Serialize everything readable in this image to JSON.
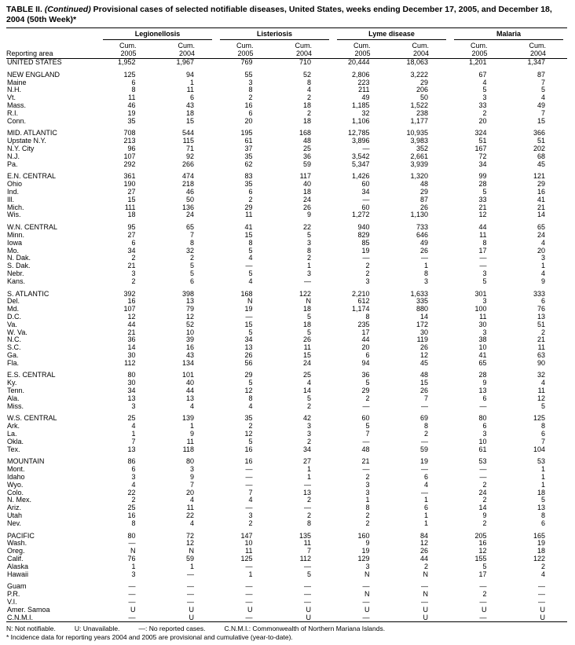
{
  "title": {
    "prefix": "TABLE II.",
    "continued": "(Continued)",
    "rest": "Provisional cases of selected notifiable diseases, United States, weeks ending December 17, 2005, and December 18, 2004 (50th Week)*"
  },
  "table": {
    "row_header": "Reporting area",
    "column_groups": [
      "Legionellosis",
      "Listeriosis",
      "Lyme disease",
      "Malaria"
    ],
    "sub_label": "Cum.",
    "years": [
      "2005",
      "2004"
    ],
    "sections": [
      {
        "rows": [
          {
            "area": "UNITED STATES",
            "values": [
              "1,952",
              "1,967",
              "769",
              "710",
              "20,444",
              "18,063",
              "1,201",
              "1,347"
            ]
          }
        ]
      },
      {
        "rows": [
          {
            "area": "NEW ENGLAND",
            "values": [
              "125",
              "94",
              "55",
              "52",
              "2,806",
              "3,222",
              "67",
              "87"
            ]
          },
          {
            "area": "Maine",
            "values": [
              "6",
              "1",
              "3",
              "8",
              "223",
              "29",
              "4",
              "7"
            ]
          },
          {
            "area": "N.H.",
            "values": [
              "8",
              "11",
              "8",
              "4",
              "211",
              "206",
              "5",
              "5"
            ]
          },
          {
            "area": "Vt.",
            "values": [
              "11",
              "6",
              "2",
              "2",
              "49",
              "50",
              "3",
              "4"
            ]
          },
          {
            "area": "Mass.",
            "values": [
              "46",
              "43",
              "16",
              "18",
              "1,185",
              "1,522",
              "33",
              "49"
            ]
          },
          {
            "area": "R.I.",
            "values": [
              "19",
              "18",
              "6",
              "2",
              "32",
              "238",
              "2",
              "7"
            ]
          },
          {
            "area": "Conn.",
            "values": [
              "35",
              "15",
              "20",
              "18",
              "1,106",
              "1,177",
              "20",
              "15"
            ]
          }
        ]
      },
      {
        "rows": [
          {
            "area": "MID. ATLANTIC",
            "values": [
              "708",
              "544",
              "195",
              "168",
              "12,785",
              "10,935",
              "324",
              "366"
            ]
          },
          {
            "area": "Upstate N.Y.",
            "values": [
              "213",
              "115",
              "61",
              "48",
              "3,896",
              "3,983",
              "51",
              "51"
            ]
          },
          {
            "area": "N.Y. City",
            "values": [
              "96",
              "71",
              "37",
              "25",
              "—",
              "352",
              "167",
              "202"
            ]
          },
          {
            "area": "N.J.",
            "values": [
              "107",
              "92",
              "35",
              "36",
              "3,542",
              "2,661",
              "72",
              "68"
            ]
          },
          {
            "area": "Pa.",
            "values": [
              "292",
              "266",
              "62",
              "59",
              "5,347",
              "3,939",
              "34",
              "45"
            ]
          }
        ]
      },
      {
        "rows": [
          {
            "area": "E.N. CENTRAL",
            "values": [
              "361",
              "474",
              "83",
              "117",
              "1,426",
              "1,320",
              "99",
              "121"
            ]
          },
          {
            "area": "Ohio",
            "values": [
              "190",
              "218",
              "35",
              "40",
              "60",
              "48",
              "28",
              "29"
            ]
          },
          {
            "area": "Ind.",
            "values": [
              "27",
              "46",
              "6",
              "18",
              "34",
              "29",
              "5",
              "16"
            ]
          },
          {
            "area": "Ill.",
            "values": [
              "15",
              "50",
              "2",
              "24",
              "—",
              "87",
              "33",
              "41"
            ]
          },
          {
            "area": "Mich.",
            "values": [
              "111",
              "136",
              "29",
              "26",
              "60",
              "26",
              "21",
              "21"
            ]
          },
          {
            "area": "Wis.",
            "values": [
              "18",
              "24",
              "11",
              "9",
              "1,272",
              "1,130",
              "12",
              "14"
            ]
          }
        ]
      },
      {
        "rows": [
          {
            "area": "W.N. CENTRAL",
            "values": [
              "95",
              "65",
              "41",
              "22",
              "940",
              "733",
              "44",
              "65"
            ]
          },
          {
            "area": "Minn.",
            "values": [
              "27",
              "7",
              "15",
              "5",
              "829",
              "646",
              "11",
              "24"
            ]
          },
          {
            "area": "Iowa",
            "values": [
              "6",
              "8",
              "8",
              "3",
              "85",
              "49",
              "8",
              "4"
            ]
          },
          {
            "area": "Mo.",
            "values": [
              "34",
              "32",
              "5",
              "8",
              "19",
              "26",
              "17",
              "20"
            ]
          },
          {
            "area": "N. Dak.",
            "values": [
              "2",
              "2",
              "4",
              "2",
              "—",
              "—",
              "—",
              "3"
            ]
          },
          {
            "area": "S. Dak.",
            "values": [
              "21",
              "5",
              "—",
              "1",
              "2",
              "1",
              "—",
              "1"
            ]
          },
          {
            "area": "Nebr.",
            "values": [
              "3",
              "5",
              "5",
              "3",
              "2",
              "8",
              "3",
              "4"
            ]
          },
          {
            "area": "Kans.",
            "values": [
              "2",
              "6",
              "4",
              "—",
              "3",
              "3",
              "5",
              "9"
            ]
          }
        ]
      },
      {
        "rows": [
          {
            "area": "S. ATLANTIC",
            "values": [
              "392",
              "398",
              "168",
              "122",
              "2,210",
              "1,633",
              "301",
              "333"
            ]
          },
          {
            "area": "Del.",
            "values": [
              "16",
              "13",
              "N",
              "N",
              "612",
              "335",
              "3",
              "6"
            ]
          },
          {
            "area": "Md.",
            "values": [
              "107",
              "79",
              "19",
              "18",
              "1,174",
              "880",
              "100",
              "76"
            ]
          },
          {
            "area": "D.C.",
            "values": [
              "12",
              "12",
              "—",
              "5",
              "8",
              "14",
              "11",
              "13"
            ]
          },
          {
            "area": "Va.",
            "values": [
              "44",
              "52",
              "15",
              "18",
              "235",
              "172",
              "30",
              "51"
            ]
          },
          {
            "area": "W. Va.",
            "values": [
              "21",
              "10",
              "5",
              "5",
              "17",
              "30",
              "3",
              "2"
            ]
          },
          {
            "area": "N.C.",
            "values": [
              "36",
              "39",
              "34",
              "26",
              "44",
              "119",
              "38",
              "21"
            ]
          },
          {
            "area": "S.C.",
            "values": [
              "14",
              "16",
              "13",
              "11",
              "20",
              "26",
              "10",
              "11"
            ]
          },
          {
            "area": "Ga.",
            "values": [
              "30",
              "43",
              "26",
              "15",
              "6",
              "12",
              "41",
              "63"
            ]
          },
          {
            "area": "Fla.",
            "values": [
              "112",
              "134",
              "56",
              "24",
              "94",
              "45",
              "65",
              "90"
            ]
          }
        ]
      },
      {
        "rows": [
          {
            "area": "E.S. CENTRAL",
            "values": [
              "80",
              "101",
              "29",
              "25",
              "36",
              "48",
              "28",
              "32"
            ]
          },
          {
            "area": "Ky.",
            "values": [
              "30",
              "40",
              "5",
              "4",
              "5",
              "15",
              "9",
              "4"
            ]
          },
          {
            "area": "Tenn.",
            "values": [
              "34",
              "44",
              "12",
              "14",
              "29",
              "26",
              "13",
              "11"
            ]
          },
          {
            "area": "Ala.",
            "values": [
              "13",
              "13",
              "8",
              "5",
              "2",
              "7",
              "6",
              "12"
            ]
          },
          {
            "area": "Miss.",
            "values": [
              "3",
              "4",
              "4",
              "2",
              "—",
              "—",
              "—",
              "5"
            ]
          }
        ]
      },
      {
        "rows": [
          {
            "area": "W.S. CENTRAL",
            "values": [
              "25",
              "139",
              "35",
              "42",
              "60",
              "69",
              "80",
              "125"
            ]
          },
          {
            "area": "Ark.",
            "values": [
              "4",
              "1",
              "2",
              "3",
              "5",
              "8",
              "6",
              "8"
            ]
          },
          {
            "area": "La.",
            "values": [
              "1",
              "9",
              "12",
              "3",
              "7",
              "2",
              "3",
              "6"
            ]
          },
          {
            "area": "Okla.",
            "values": [
              "7",
              "11",
              "5",
              "2",
              "—",
              "—",
              "10",
              "7"
            ]
          },
          {
            "area": "Tex.",
            "values": [
              "13",
              "118",
              "16",
              "34",
              "48",
              "59",
              "61",
              "104"
            ]
          }
        ]
      },
      {
        "rows": [
          {
            "area": "MOUNTAIN",
            "values": [
              "86",
              "80",
              "16",
              "27",
              "21",
              "19",
              "53",
              "53"
            ]
          },
          {
            "area": "Mont.",
            "values": [
              "6",
              "3",
              "—",
              "1",
              "—",
              "—",
              "—",
              "1"
            ]
          },
          {
            "area": "Idaho",
            "values": [
              "3",
              "9",
              "—",
              "1",
              "2",
              "6",
              "—",
              "1"
            ]
          },
          {
            "area": "Wyo.",
            "values": [
              "4",
              "7",
              "—",
              "—",
              "3",
              "4",
              "2",
              "1"
            ]
          },
          {
            "area": "Colo.",
            "values": [
              "22",
              "20",
              "7",
              "13",
              "3",
              "—",
              "24",
              "18"
            ]
          },
          {
            "area": "N. Mex.",
            "values": [
              "2",
              "4",
              "4",
              "2",
              "1",
              "1",
              "2",
              "5"
            ]
          },
          {
            "area": "Ariz.",
            "values": [
              "25",
              "11",
              "—",
              "—",
              "8",
              "6",
              "14",
              "13"
            ]
          },
          {
            "area": "Utah",
            "values": [
              "16",
              "22",
              "3",
              "2",
              "2",
              "1",
              "9",
              "8"
            ]
          },
          {
            "area": "Nev.",
            "values": [
              "8",
              "4",
              "2",
              "8",
              "2",
              "1",
              "2",
              "6"
            ]
          }
        ]
      },
      {
        "rows": [
          {
            "area": "PACIFIC",
            "values": [
              "80",
              "72",
              "147",
              "135",
              "160",
              "84",
              "205",
              "165"
            ]
          },
          {
            "area": "Wash.",
            "values": [
              "—",
              "12",
              "10",
              "11",
              "9",
              "12",
              "16",
              "19"
            ]
          },
          {
            "area": "Oreg.",
            "values": [
              "N",
              "N",
              "11",
              "7",
              "19",
              "26",
              "12",
              "18"
            ]
          },
          {
            "area": "Calif.",
            "values": [
              "76",
              "59",
              "125",
              "112",
              "129",
              "44",
              "155",
              "122"
            ]
          },
          {
            "area": "Alaska",
            "values": [
              "1",
              "1",
              "—",
              "—",
              "3",
              "2",
              "5",
              "2"
            ]
          },
          {
            "area": "Hawaii",
            "values": [
              "3",
              "—",
              "1",
              "5",
              "N",
              "N",
              "17",
              "4"
            ]
          }
        ]
      },
      {
        "rows": [
          {
            "area": "Guam",
            "values": [
              "—",
              "—",
              "—",
              "—",
              "—",
              "—",
              "—",
              "—"
            ]
          },
          {
            "area": "P.R.",
            "values": [
              "—",
              "—",
              "—",
              "—",
              "N",
              "N",
              "2",
              "—"
            ]
          },
          {
            "area": "V.I.",
            "values": [
              "—",
              "—",
              "—",
              "—",
              "—",
              "—",
              "—",
              "—"
            ]
          },
          {
            "area": "Amer. Samoa",
            "values": [
              "U",
              "U",
              "U",
              "U",
              "U",
              "U",
              "U",
              "U"
            ]
          },
          {
            "area": "C.N.M.I.",
            "values": [
              "—",
              "U",
              "—",
              "U",
              "—",
              "U",
              "—",
              "U"
            ]
          }
        ]
      }
    ]
  },
  "footnotes": {
    "legend": [
      "N: Not notifiable.",
      "U: Unavailable.",
      "—: No reported cases.",
      "C.N.M.I.: Commonwealth of Northern Mariana Islands."
    ],
    "note": "* Incidence data for reporting years 2004 and 2005 are provisional and cumulative (year-to-date)."
  }
}
